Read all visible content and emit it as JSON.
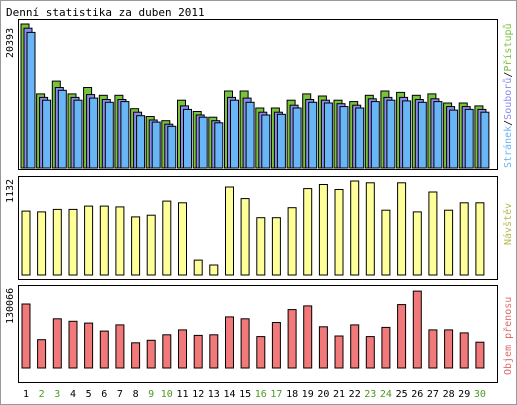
{
  "title": "Denní statistika za duben 2011",
  "colors": {
    "hits": "#79c23b",
    "files": "#8b8bee",
    "pages": "#69b6f7",
    "visits": "#ffff99",
    "kbytes": "#f27979",
    "weekend_label": "#4c9a20",
    "visits_label": "#b8b850",
    "kbytes_label": "#e06a6a"
  },
  "chart_data": [
    {
      "type": "bar",
      "panel": "hits",
      "y_max_label": "20393",
      "legend": [
        {
          "text": "Přístupů",
          "color": "#79c23b"
        },
        {
          "text": "Souborů",
          "color": "#8b8bee"
        },
        {
          "text": "Stránek",
          "color": "#69b6f7"
        }
      ],
      "categories": [
        "1",
        "2",
        "3",
        "4",
        "5",
        "6",
        "7",
        "8",
        "9",
        "10",
        "11",
        "12",
        "13",
        "14",
        "15",
        "16",
        "17",
        "18",
        "19",
        "20",
        "21",
        "22",
        "23",
        "24",
        "25",
        "26",
        "27",
        "28",
        "29",
        "30"
      ],
      "weekend_days": [
        "2",
        "3",
        "9",
        "10",
        "16",
        "17",
        "23",
        "24",
        "30"
      ],
      "ylim": [
        0,
        20393
      ],
      "series": [
        {
          "name": "Přístupů",
          "values": [
            20393,
            10500,
            12300,
            10500,
            11400,
            10300,
            10300,
            8400,
            7300,
            6700,
            9600,
            8000,
            7200,
            10900,
            10900,
            8500,
            8500,
            9600,
            10500,
            10200,
            9600,
            9400,
            10300,
            10900,
            10700,
            10300,
            10500,
            9200,
            9200,
            8800
          ]
        },
        {
          "name": "Souborů",
          "values": [
            19800,
            10000,
            11400,
            10000,
            10400,
            9700,
            9700,
            7900,
            6800,
            6200,
            8800,
            7500,
            6700,
            10000,
            9900,
            7900,
            7900,
            8900,
            9700,
            9600,
            9100,
            8900,
            9800,
            10000,
            10000,
            9700,
            9800,
            8700,
            8700,
            8300
          ]
        },
        {
          "name": "Stránek",
          "values": [
            19200,
            9600,
            11000,
            9600,
            9900,
            9300,
            9400,
            7400,
            6500,
            5900,
            8300,
            7200,
            6400,
            9600,
            9300,
            7500,
            7600,
            8500,
            9300,
            9200,
            8700,
            8500,
            9400,
            9600,
            9500,
            9300,
            9400,
            8200,
            8300,
            7900
          ]
        }
      ]
    },
    {
      "type": "bar",
      "panel": "visits",
      "y_max_label": "1132",
      "legend": [
        {
          "text": "Návštěv",
          "color": "#b8b850"
        }
      ],
      "categories": [
        "1",
        "2",
        "3",
        "4",
        "5",
        "6",
        "7",
        "8",
        "9",
        "10",
        "11",
        "12",
        "13",
        "14",
        "15",
        "16",
        "17",
        "18",
        "19",
        "20",
        "21",
        "22",
        "23",
        "24",
        "25",
        "26",
        "27",
        "28",
        "29",
        "30"
      ],
      "ylim": [
        0,
        1132
      ],
      "series": [
        {
          "name": "Návštěv",
          "values": [
            770,
            760,
            790,
            790,
            830,
            830,
            820,
            700,
            720,
            890,
            870,
            180,
            120,
            1060,
            920,
            690,
            690,
            810,
            1040,
            1090,
            1030,
            1132,
            1110,
            780,
            1110,
            760,
            1000,
            780,
            870,
            870
          ]
        }
      ]
    },
    {
      "type": "bar",
      "panel": "kbytes",
      "y_max_label": "130066",
      "legend": [
        {
          "text": "Objem přenosu",
          "color": "#e06a6a"
        }
      ],
      "categories": [
        "1",
        "2",
        "3",
        "4",
        "5",
        "6",
        "7",
        "8",
        "9",
        "10",
        "11",
        "12",
        "13",
        "14",
        "15",
        "16",
        "17",
        "18",
        "19",
        "20",
        "21",
        "22",
        "23",
        "24",
        "25",
        "26",
        "27",
        "28",
        "29",
        "30"
      ],
      "ylim": [
        0,
        130066
      ],
      "series": [
        {
          "name": "Objem přenosu",
          "values": [
            104000,
            46000,
            80000,
            76000,
            73000,
            60000,
            70000,
            41000,
            45000,
            54000,
            62000,
            53000,
            54000,
            83000,
            80000,
            51000,
            74000,
            95000,
            101000,
            67000,
            52000,
            70000,
            51000,
            66000,
            103000,
            125000,
            62000,
            62000,
            57000,
            42000
          ]
        }
      ]
    }
  ]
}
